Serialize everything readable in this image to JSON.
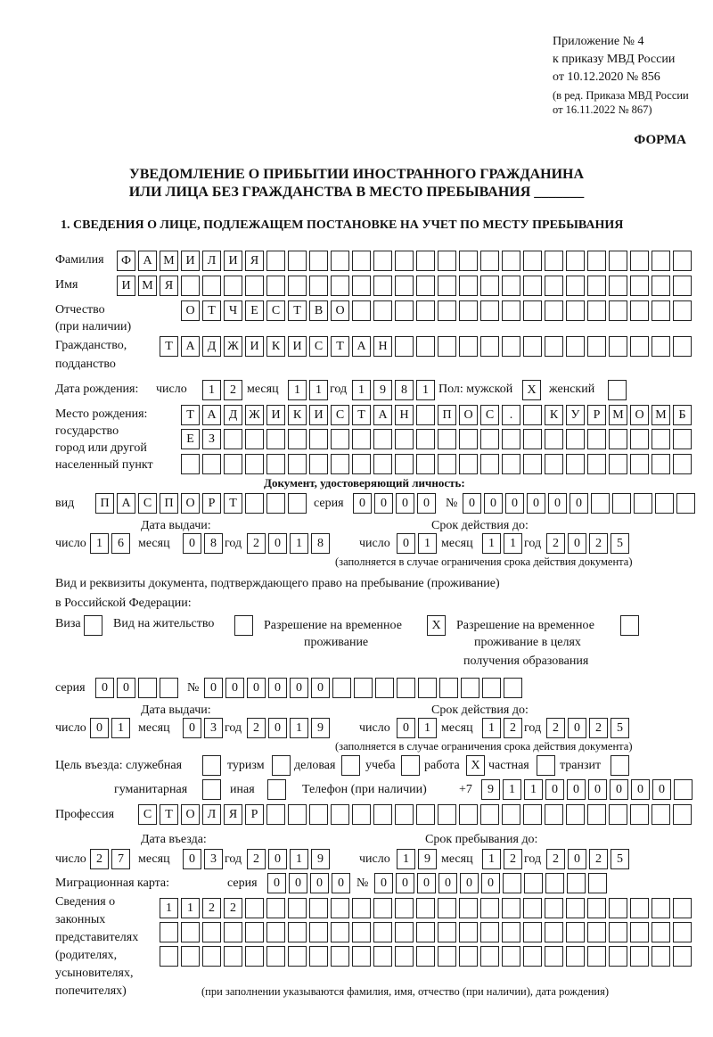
{
  "header": {
    "appendix": [
      "Приложение № 4",
      "к приказу МВД России",
      "от 10.12.2020 № 856"
    ],
    "revision": [
      "(в ред. Приказа МВД России",
      "от 16.11.2022 № 867)"
    ],
    "form_label": "ФОРМА",
    "title_line1": "УВЕДОМЛЕНИЕ О ПРИБЫТИИ ИНОСТРАННОГО ГРАЖДАНИНА",
    "title_line2": "ИЛИ ЛИЦА БЕЗ ГРАЖДАНСТВА В МЕСТО ПРЕБЫВАНИЯ _______",
    "section1": "1. СВЕДЕНИЯ О ЛИЦЕ, ПОДЛЕЖАЩЕМ ПОСТАНОВКЕ НА УЧЕТ ПО МЕСТУ ПРЕБЫВАНИЯ"
  },
  "labels": {
    "surname": "Фамилия",
    "name": "Имя",
    "patronymic": "Отчество",
    "patronymic2": "(при наличии)",
    "citizenship": "Гражданство,",
    "citizenship2": "подданство",
    "birth_date": "Дата рождения:",
    "day": "число",
    "month": "месяц",
    "year": "год",
    "sex": "Пол: мужской",
    "female": "женский",
    "birthplace": [
      "Место рождения:",
      "государство",
      "город или другой",
      "населенный пункт"
    ],
    "id_doc": "Документ, удостоверяющий личность:",
    "kind": "вид",
    "series": "серия",
    "number": "№",
    "issue_date": "Дата выдачи:",
    "valid_until": "Срок действия до:",
    "valid_note": "(заполняется в случае ограничения срока действия документа)",
    "right_doc1": "Вид и реквизиты документа, подтверждающего право на пребывание (проживание)",
    "right_doc2": "в Российской Федерации:",
    "visa": "Виза",
    "residence": "Вид на жительство",
    "temp_res": [
      "Разрешение на временное",
      "проживание"
    ],
    "temp_res_edu": [
      "Разрешение на временное",
      "проживание в целях",
      "получения образования"
    ],
    "purpose": "Цель въезда: служебная",
    "tourism": "туризм",
    "business": "деловая",
    "study": "учеба",
    "work": "работа",
    "private": "частная",
    "transit": "транзит",
    "humanitarian": "гуманитарная",
    "other": "иная",
    "phone": "Телефон (при наличии)",
    "phone_prefix": "+7",
    "profession": "Профессия",
    "entry_date": "Дата въезда:",
    "stay_until": "Срок пребывания до:",
    "migration_card": "Миграционная карта:",
    "representatives": [
      "Сведения о",
      "законных",
      "представителях",
      "(родителях,",
      "усыновителях,",
      "попечителях)"
    ],
    "representatives_note": "(при заполнении указываются фамилия, имя, отчество (при наличии), дата рождения)"
  },
  "fields": {
    "surname": [
      "Ф",
      "А",
      "М",
      "И",
      "Л",
      "И",
      "Я",
      "",
      "",
      "",
      "",
      "",
      "",
      "",
      "",
      "",
      "",
      "",
      "",
      "",
      "",
      "",
      "",
      "",
      "",
      "",
      ""
    ],
    "name": [
      "И",
      "М",
      "Я",
      "",
      "",
      "",
      "",
      "",
      "",
      "",
      "",
      "",
      "",
      "",
      "",
      "",
      "",
      "",
      "",
      "",
      "",
      "",
      "",
      "",
      "",
      "",
      ""
    ],
    "patronymic": [
      "О",
      "Т",
      "Ч",
      "Е",
      "С",
      "Т",
      "В",
      "О",
      "",
      "",
      "",
      "",
      "",
      "",
      "",
      "",
      "",
      "",
      "",
      "",
      "",
      "",
      "",
      ""
    ],
    "citizenship": [
      "Т",
      "А",
      "Д",
      "Ж",
      "И",
      "К",
      "И",
      "С",
      "Т",
      "А",
      "Н",
      "",
      "",
      "",
      "",
      "",
      "",
      "",
      "",
      "",
      "",
      "",
      "",
      "",
      ""
    ],
    "birth_day": [
      "1",
      "2"
    ],
    "birth_month": [
      "1",
      "1"
    ],
    "birth_year": [
      "1",
      "9",
      "8",
      "1"
    ],
    "sex_male": [
      "X"
    ],
    "sex_female": [
      ""
    ],
    "birthplace_1": [
      "Т",
      "А",
      "Д",
      "Ж",
      "И",
      "К",
      "И",
      "С",
      "Т",
      "А",
      "Н",
      "",
      "П",
      "О",
      "С",
      ".",
      "",
      "К",
      "У",
      "Р",
      "М",
      "О",
      "М",
      "Б"
    ],
    "birthplace_2": [
      "Е",
      "З",
      "",
      "",
      "",
      "",
      "",
      "",
      "",
      "",
      "",
      "",
      "",
      "",
      "",
      "",
      "",
      "",
      "",
      "",
      "",
      "",
      "",
      ""
    ],
    "birthplace_3": [
      "",
      "",
      "",
      "",
      "",
      "",
      "",
      "",
      "",
      "",
      "",
      "",
      "",
      "",
      "",
      "",
      "",
      "",
      "",
      "",
      "",
      "",
      "",
      ""
    ],
    "id_kind": [
      "П",
      "А",
      "С",
      "П",
      "О",
      "Р",
      "Т",
      "",
      "",
      ""
    ],
    "id_series": [
      "0",
      "0",
      "0",
      "0"
    ],
    "id_number": [
      "0",
      "0",
      "0",
      "0",
      "0",
      "0",
      "",
      "",
      "",
      "",
      ""
    ],
    "id_issue_day": [
      "1",
      "6"
    ],
    "id_issue_month": [
      "0",
      "8"
    ],
    "id_issue_year": [
      "2",
      "0",
      "1",
      "8"
    ],
    "id_valid_day": [
      "0",
      "1"
    ],
    "id_valid_month": [
      "1",
      "1"
    ],
    "id_valid_year": [
      "2",
      "0",
      "2",
      "5"
    ],
    "visa": [
      ""
    ],
    "residence": [
      ""
    ],
    "temp_res": [
      "X"
    ],
    "temp_res_edu": [
      ""
    ],
    "right_series": [
      "0",
      "0",
      "",
      ""
    ],
    "right_number": [
      "0",
      "0",
      "0",
      "0",
      "0",
      "0",
      "",
      "",
      "",
      "",
      "",
      "",
      "",
      "",
      ""
    ],
    "right_issue_day": [
      "0",
      "1"
    ],
    "right_issue_month": [
      "0",
      "3"
    ],
    "right_issue_year": [
      "2",
      "0",
      "1",
      "9"
    ],
    "right_valid_day": [
      "0",
      "1"
    ],
    "right_valid_month": [
      "1",
      "2"
    ],
    "right_valid_year": [
      "2",
      "0",
      "2",
      "5"
    ],
    "purpose_service": [
      ""
    ],
    "purpose_tourism": [
      ""
    ],
    "purpose_business": [
      ""
    ],
    "purpose_study": [
      ""
    ],
    "purpose_work": [
      "X"
    ],
    "purpose_private": [
      ""
    ],
    "purpose_transit": [
      ""
    ],
    "purpose_humanitarian": [
      ""
    ],
    "purpose_other": [
      ""
    ],
    "phone": [
      "9",
      "1",
      "1",
      "0",
      "0",
      "0",
      "0",
      "0",
      "0",
      ""
    ],
    "profession": [
      "С",
      "Т",
      "О",
      "Л",
      "Я",
      "Р",
      "",
      "",
      "",
      "",
      "",
      "",
      "",
      "",
      "",
      "",
      "",
      "",
      "",
      "",
      "",
      "",
      "",
      "",
      "",
      ""
    ],
    "entry_day": [
      "2",
      "7"
    ],
    "entry_month": [
      "0",
      "3"
    ],
    "entry_year": [
      "2",
      "0",
      "1",
      "9"
    ],
    "stay_day": [
      "1",
      "9"
    ],
    "stay_month": [
      "1",
      "2"
    ],
    "stay_year": [
      "2",
      "0",
      "2",
      "5"
    ],
    "mig_series": [
      "0",
      "0",
      "0",
      "0"
    ],
    "mig_number": [
      "0",
      "0",
      "0",
      "0",
      "0",
      "0",
      "",
      "",
      "",
      "",
      ""
    ],
    "rep_1": [
      "1",
      "1",
      "2",
      "2",
      "",
      "",
      "",
      "",
      "",
      "",
      "",
      "",
      "",
      "",
      "",
      "",
      "",
      "",
      "",
      "",
      "",
      "",
      "",
      "",
      ""
    ],
    "rep_2": [
      "",
      "",
      "",
      "",
      "",
      "",
      "",
      "",
      "",
      "",
      "",
      "",
      "",
      "",
      "",
      "",
      "",
      "",
      "",
      "",
      "",
      "",
      "",
      "",
      ""
    ],
    "rep_3": [
      "",
      "",
      "",
      "",
      "",
      "",
      "",
      "",
      "",
      "",
      "",
      "",
      "",
      "",
      "",
      "",
      "",
      "",
      "",
      "",
      "",
      "",
      "",
      "",
      ""
    ]
  }
}
